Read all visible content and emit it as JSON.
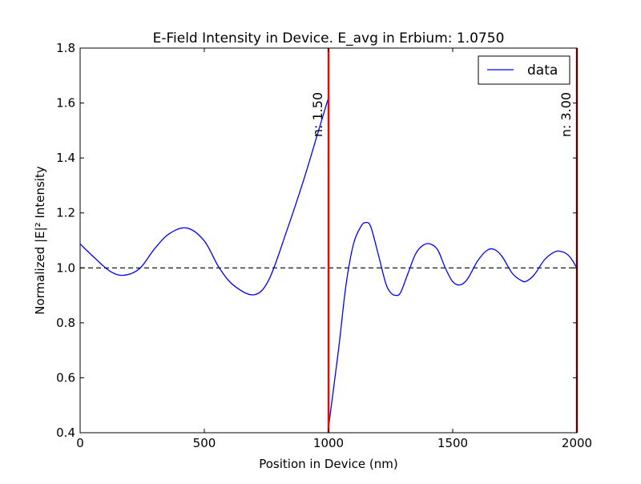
{
  "chart_data": {
    "type": "line",
    "title": "E-Field Intensity in Device. E_avg in Erbium: 1.0750",
    "xlabel": "Position in Device (nm)",
    "ylabel": "Normalized |E|² Intensity",
    "xlim": [
      0,
      2000
    ],
    "ylim": [
      0.4,
      1.8
    ],
    "x_ticks": [
      0,
      500,
      1000,
      1500,
      2000
    ],
    "y_ticks": [
      0.4,
      0.6,
      0.8,
      1.0,
      1.2,
      1.4,
      1.6,
      1.8
    ],
    "x_tick_labels": [
      "0",
      "500",
      "1000",
      "1500",
      "2000"
    ],
    "y_tick_labels": [
      "0.4",
      "0.6",
      "0.8",
      "1.0",
      "1.2",
      "1.4",
      "1.6",
      "1.8"
    ],
    "grid": false,
    "legend": {
      "position": "top-right",
      "entries": [
        "data"
      ]
    },
    "series": [
      {
        "name": "data",
        "color": "#0000ff",
        "segments": [
          {
            "x": [
              0,
              60,
              120,
              175,
              240,
              300,
              360,
              430,
              500,
              560,
              620,
              700,
              760,
              830,
              900,
              960,
              1000
            ],
            "y": [
              1.087,
              1.035,
              0.988,
              0.973,
              0.998,
              1.07,
              1.125,
              1.145,
              1.098,
              1.0,
              0.935,
              0.902,
              0.957,
              1.13,
              1.32,
              1.5,
              1.62
            ]
          },
          {
            "x": [
              1000,
              1040,
              1070,
              1100,
              1130,
              1150,
              1170,
              1200,
              1230,
              1250,
              1270,
              1290,
              1320,
              1350,
              1380,
              1410,
              1440,
              1470,
              1500,
              1530,
              1560,
              1600,
              1640,
              1670,
              1700,
              1740,
              1780,
              1800,
              1830,
              1870,
              1910,
              1935,
              1960,
              1980,
              2000
            ],
            "y": [
              0.42,
              0.7,
              0.935,
              1.085,
              1.15,
              1.165,
              1.15,
              1.05,
              0.945,
              0.91,
              0.9,
              0.91,
              0.98,
              1.05,
              1.082,
              1.087,
              1.065,
              1.0,
              0.95,
              0.938,
              0.96,
              1.025,
              1.065,
              1.066,
              1.04,
              0.98,
              0.952,
              0.953,
              0.977,
              1.03,
              1.058,
              1.06,
              1.05,
              1.03,
              0.998
            ]
          }
        ]
      }
    ],
    "reference_line": {
      "y": 1.0,
      "style": "dashed",
      "color": "#000000"
    },
    "layer_boundaries": [
      {
        "x": 1000,
        "label": "n: 1.50",
        "color": "#ff0000"
      },
      {
        "x": 2000,
        "label": "n: 3.00",
        "color": "#aa0000"
      }
    ]
  }
}
